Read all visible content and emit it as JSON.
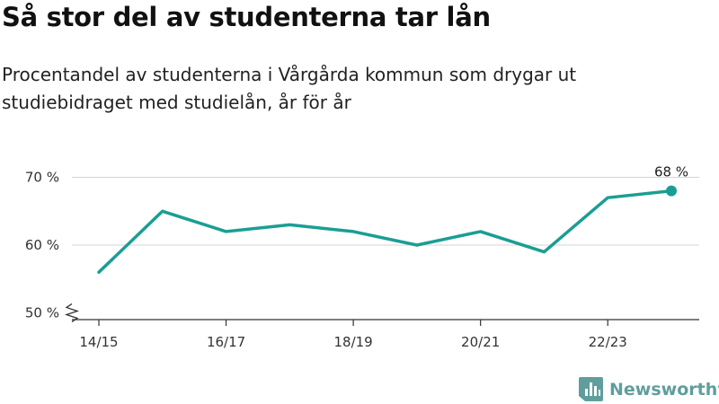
{
  "title": "Så stor del av studenterna tar lån",
  "subtitle": "Procentandel av studenterna i Vårgårda kommun som drygar ut studiebidraget med studielån, år för år",
  "brand": {
    "name": "Newsworthy",
    "icon": "newsworthy-logo-icon",
    "color": "#5f9e9c"
  },
  "chart_data": {
    "type": "line",
    "title": "Så stor del av studenterna tar lån",
    "subtitle": "Procentandel av studenterna i Vårgårda kommun som drygar ut studiebidraget med studielån, år för år",
    "xlabel": "",
    "ylabel": "",
    "x": [
      "14/15",
      "15/16",
      "16/17",
      "17/18",
      "18/19",
      "19/20",
      "20/21",
      "21/22",
      "22/23",
      "23/24"
    ],
    "x_tick_labels": [
      "14/15",
      "16/17",
      "18/19",
      "20/21",
      "22/23"
    ],
    "y_ticks": [
      50,
      60,
      70
    ],
    "y_tick_labels": [
      "50 %",
      "60 %",
      "70 %"
    ],
    "ylim": [
      49,
      71
    ],
    "y_axis_break": true,
    "grid": true,
    "color": "#1a9e94",
    "series": [
      {
        "values": [
          56,
          65,
          62,
          63,
          62,
          60,
          62,
          59,
          67,
          68
        ]
      }
    ],
    "annotations": [
      {
        "x": "23/24",
        "label": "68 %"
      }
    ]
  }
}
